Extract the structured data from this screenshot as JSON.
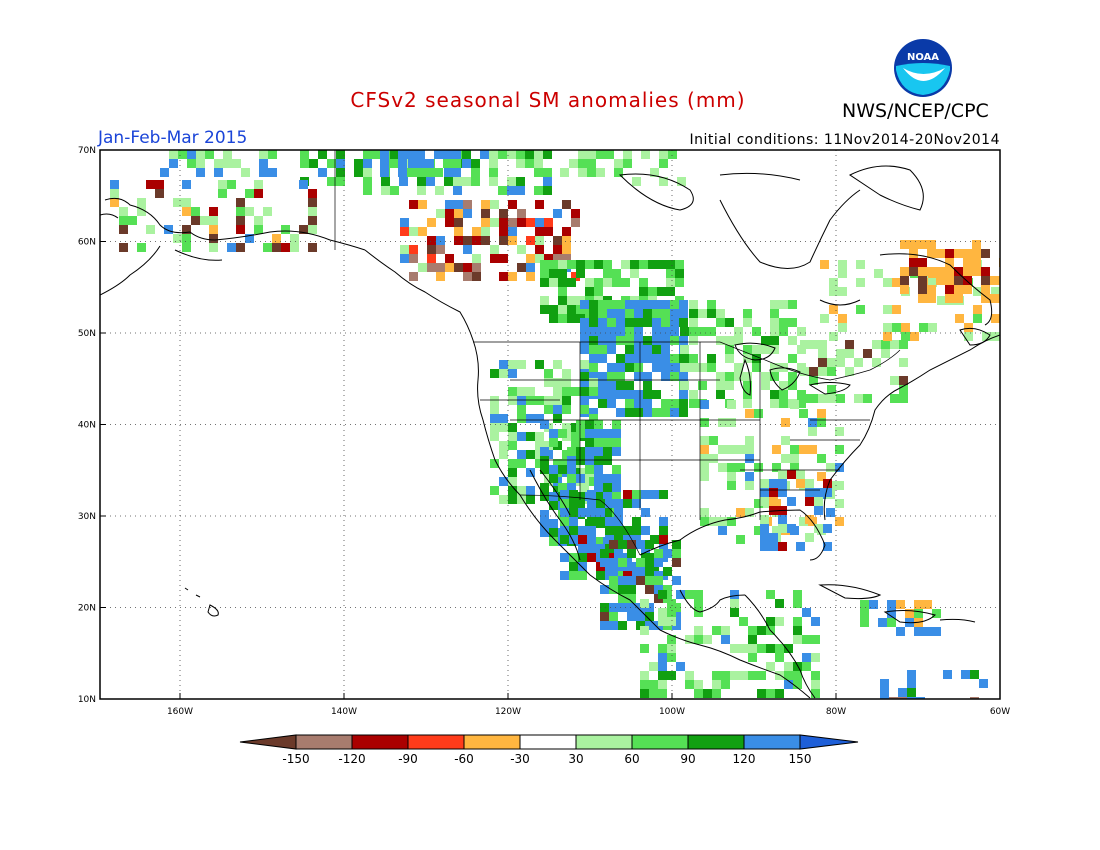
{
  "title": "CFSv2 seasonal SM anomalies (mm)",
  "organization": "NWS/NCEP/CPC",
  "logo_text": "NOAA",
  "period": "Jan-Feb-Mar 2015",
  "initial_conditions": "Initial conditions: 11Nov2014-20Nov2014",
  "map": {
    "lat_labels": [
      "70N",
      "60N",
      "50N",
      "40N",
      "30N",
      "20N",
      "10N"
    ],
    "lon_labels": [
      "160W",
      "140W",
      "120W",
      "100W",
      "80W",
      "60W"
    ]
  },
  "colorbar": {
    "labels": [
      "-150",
      "-120",
      "-90",
      "-60",
      "-30",
      "30",
      "60",
      "90",
      "120",
      "150"
    ],
    "colors": [
      "#6b3a2a",
      "#a87c6e",
      "#aa0000",
      "#ff3b1a",
      "#ffb640",
      "#ffffff",
      "#aaf2a0",
      "#55e055",
      "#11a011",
      "#3a8ee6",
      "#1e5fd8"
    ]
  },
  "colors": {
    "title": "#cc0000",
    "period": "#1a44d8"
  }
}
